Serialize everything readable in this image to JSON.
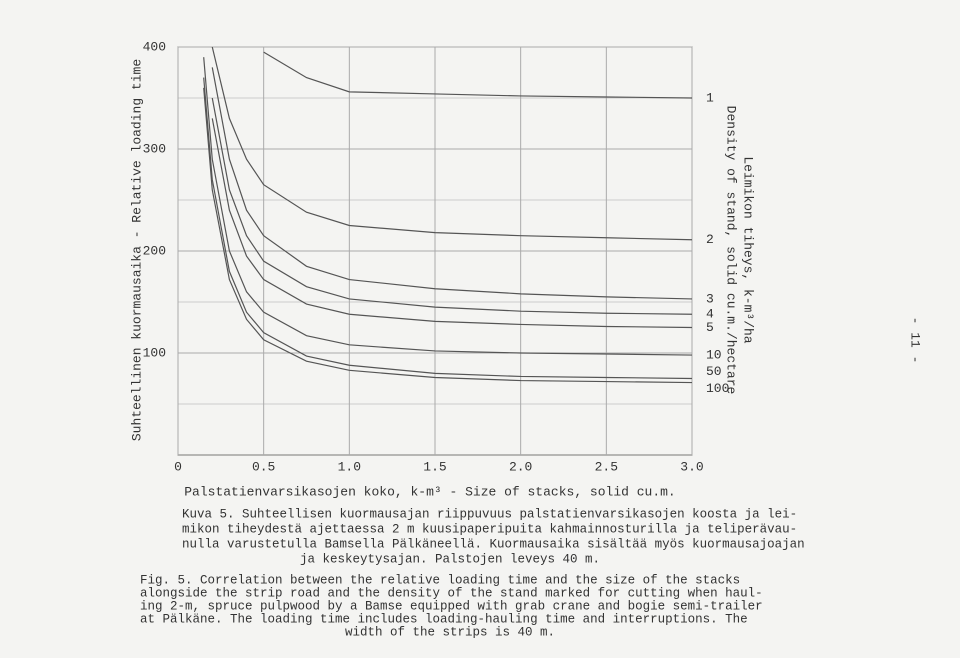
{
  "chart_data": {
    "type": "line",
    "x_label": "Palstatienvarsikasojen koko, k-m³  -  Size of stacks, solid cu.m.",
    "y_label": "Suhteellinen kuormausaika  -  Relative loading time",
    "y2_label_1": "Leimikon tiheys, k-m³/ha",
    "y2_label_2": "Density of stand, solid cu.m./hectare",
    "x": [
      0.15,
      0.2,
      0.3,
      0.4,
      0.5,
      0.75,
      1.0,
      1.5,
      2.0,
      2.5,
      3.0
    ],
    "series": [
      {
        "name": "1",
        "color": "#555",
        "values": [
          null,
          null,
          null,
          null,
          395,
          370,
          356,
          354,
          352,
          351,
          350
        ]
      },
      {
        "name": "2",
        "color": "#555",
        "values": [
          null,
          400,
          330,
          290,
          265,
          238,
          225,
          218,
          215,
          213,
          211
        ]
      },
      {
        "name": "3",
        "color": "#555",
        "values": [
          null,
          380,
          290,
          240,
          215,
          185,
          172,
          163,
          158,
          155,
          153
        ]
      },
      {
        "name": "4",
        "color": "#555",
        "values": [
          null,
          350,
          260,
          215,
          190,
          165,
          153,
          145,
          141,
          139,
          138
        ]
      },
      {
        "name": "5",
        "color": "#555",
        "values": [
          null,
          330,
          240,
          195,
          172,
          148,
          138,
          131,
          128,
          126,
          125
        ]
      },
      {
        "name": "10",
        "color": "#555",
        "values": [
          390,
          290,
          200,
          160,
          140,
          117,
          108,
          102,
          100,
          99,
          98
        ]
      },
      {
        "name": "50",
        "color": "#555",
        "values": [
          370,
          270,
          180,
          140,
          120,
          97,
          88,
          80,
          77,
          76,
          75
        ]
      },
      {
        "name": "100",
        "color": "#555",
        "values": [
          360,
          260,
          172,
          133,
          113,
          92,
          83,
          76,
          73,
          72,
          71
        ]
      }
    ],
    "xlim": [
      0,
      3.0
    ],
    "ylim": [
      0,
      400
    ],
    "xticks": [
      0,
      0.5,
      {
        "value": 1,
        "label": "1.0"
      },
      1.5,
      {
        "value": 2,
        "label": "2.0"
      },
      2.5,
      {
        "value": 3,
        "label": "3.0"
      }
    ],
    "yticks": [
      100,
      200,
      300,
      400
    ],
    "minor_yticks": [
      50,
      150,
      250,
      350
    ],
    "grid": true
  },
  "caption_fi": [
    "Kuva 5. Suhteellisen kuormausajan riippuvuus palstatienvarsikasojen koosta ja lei-",
    "mikon tiheydestä ajettaessa 2 m kuusipaperipuita kahmainnosturilla ja teliperävau-",
    "nulla varustetulla Bamsella Pälkäneellä. Kuormausaika sisältää myös kuormausajoajan",
    "ja keskeytysajan. Palstojen leveys 40 m."
  ],
  "caption_en": [
    "Fig. 5. Correlation between the relative loading time  and  the size of the stacks",
    "alongside the strip road and the density of the stand marked for cutting when haul-",
    "ing 2-m, spruce pulpwood by a Bamse equipped with grab crane and bogie semi-trailer",
    "at Pälkäne. The loading time includes loading-hauling time and interruptions. The",
    "width of the strips is 40 m."
  ],
  "page_number": "- 11 -"
}
